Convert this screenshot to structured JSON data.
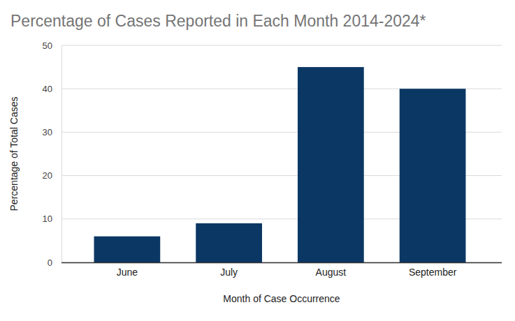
{
  "chart_data": {
    "type": "bar",
    "title": "Percentage of Cases Reported in Each Month 2014-2024*",
    "x_label": "Month of Case Occurrence",
    "y_label": "Percentage of Total Cases",
    "categories": [
      "June",
      "July",
      "August",
      "September"
    ],
    "values": [
      6,
      9,
      45,
      40
    ],
    "color": "#0b3764",
    "ylim": [
      0,
      50
    ],
    "yticks": [
      0,
      10,
      20,
      30,
      40,
      50
    ],
    "grid": true
  }
}
